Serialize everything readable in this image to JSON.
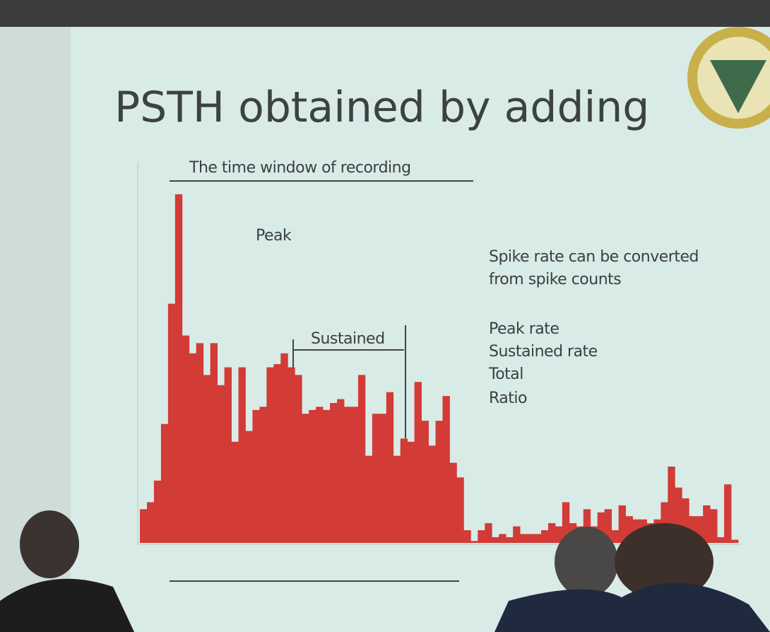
{
  "chart_data": {
    "type": "histogram",
    "title": "PSTH obtained by adding",
    "annotations": [
      "The time window of recording",
      "Peak",
      "Sustained",
      "Spike rate can be converted",
      "from spike counts",
      "Peak rate",
      "Sustained rate",
      "Total",
      "Ratio"
    ],
    "color": "#d23b36",
    "ylim": [
      0,
      60
    ],
    "values": [
      5.3,
      6.4,
      9.8,
      18.7,
      37.6,
      54.8,
      32.6,
      29.8,
      31.4,
      26.4,
      31.4,
      24.8,
      27.6,
      15.9,
      27.6,
      17.6,
      20.9,
      21.4,
      27.6,
      28.1,
      29.8,
      27.6,
      26.4,
      20.3,
      20.9,
      21.4,
      20.9,
      22,
      22.6,
      21.4,
      21.4,
      26.4,
      13.7,
      20.3,
      20.3,
      23.7,
      13.7,
      16.4,
      15.9,
      25.3,
      19.2,
      15.3,
      19.2,
      23.1,
      12.6,
      10.3,
      2,
      0.3,
      2,
      3.1,
      0.9,
      1.4,
      0.9,
      2.6,
      1.4,
      1.4,
      1.4,
      2,
      3.1,
      2.6,
      6.4,
      3.1,
      2.6,
      5.3,
      2.6,
      4.8,
      5.3,
      2,
      5.9,
      4.2,
      3.7,
      3.7,
      3.1,
      3.7,
      6.4,
      12,
      8.7,
      7,
      4.2,
      4.2,
      5.9,
      5.3,
      0.9,
      9.2,
      0.5
    ]
  }
}
